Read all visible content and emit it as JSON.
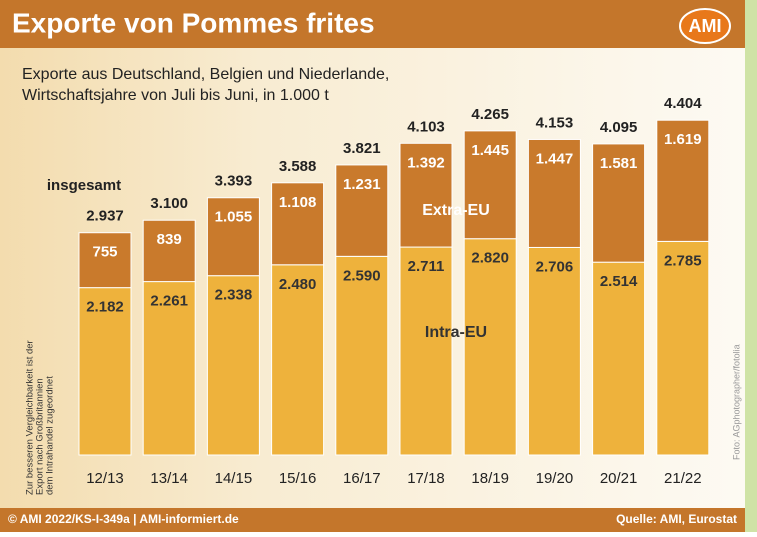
{
  "chart_data": {
    "type": "stacked_bar",
    "title": "Exporte von Pommes frites",
    "logo": "AMI",
    "subtitle": [
      "Exporte aus Deutschland, Belgien und Niederlande,",
      "Wirtschaftsjahre von Juli bis Juni, in 1.000 t"
    ],
    "categories": [
      "12/13",
      "13/14",
      "14/15",
      "15/16",
      "16/17",
      "17/18",
      "18/19",
      "19/20",
      "20/21",
      "21/22"
    ],
    "series": [
      {
        "name": "Intra-EU",
        "color": "#eeb23c",
        "values": [
          2182,
          2261,
          2338,
          2480,
          2590,
          2711,
          2820,
          2706,
          2514,
          2785
        ],
        "value_labels": [
          "2.182",
          "2.261",
          "2.338",
          "2.480",
          "2.590",
          "2.711",
          "2.820",
          "2.706",
          "2.514",
          "2.785"
        ]
      },
      {
        "name": "Extra-EU",
        "color": "#c97a2c",
        "values": [
          755,
          839,
          1055,
          1108,
          1231,
          1392,
          1445,
          1447,
          1581,
          1619
        ],
        "value_labels": [
          "755",
          "839",
          "1.055",
          "1.108",
          "1.231",
          "1.392",
          "1.445",
          "1.447",
          "1.581",
          "1.619"
        ]
      }
    ],
    "totals": {
      "label": "insgesamt",
      "values": [
        2937,
        3100,
        3393,
        3588,
        3821,
        4103,
        4265,
        4153,
        4095,
        4404
      ],
      "value_labels": [
        "2.937",
        "3.100",
        "3.393",
        "3.588",
        "3.821",
        "4.103",
        "4.265",
        "4.153",
        "4.095",
        "4.404"
      ]
    },
    "note": [
      "Zur besseren Vergleichbarkeit ist der",
      "Export nach Großbritannien",
      "dem Intrahandel zugeordnet"
    ],
    "photo_credit": "Foto: AGphotographer/fotolia",
    "footer": {
      "copyright": "© AMI 2022/KS-I-349a | AMI-informiert.de",
      "source": "Quelle: AMI, Eurostat"
    }
  }
}
